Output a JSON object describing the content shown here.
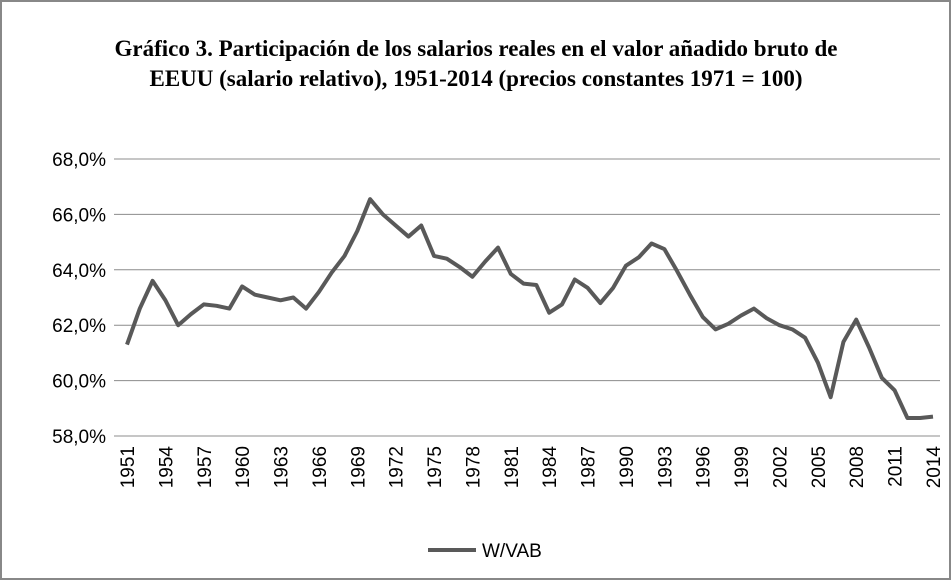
{
  "chart_data": {
    "type": "line",
    "title": "Gráfico 3. Participación de los salarios reales en el valor añadido bruto de EEUU (salario relativo), 1951-2014 (precios constantes 1971 = 100)",
    "categories": [
      "1951",
      null,
      null,
      "1954",
      null,
      null,
      "1957",
      null,
      null,
      "1960",
      null,
      null,
      "1963",
      null,
      null,
      "1966",
      null,
      null,
      "1969",
      null,
      null,
      "1972",
      null,
      null,
      "1975",
      null,
      null,
      "1978",
      null,
      null,
      "1981",
      null,
      null,
      "1984",
      null,
      null,
      "1987",
      null,
      null,
      "1990",
      null,
      null,
      "1993",
      null,
      null,
      "1996",
      null,
      null,
      "1999",
      null,
      null,
      "2002",
      null,
      null,
      "2005",
      null,
      null,
      "2008",
      null,
      null,
      "2011",
      null,
      null,
      "2014"
    ],
    "series": [
      {
        "name": "W/VAB",
        "color": "#595959",
        "values": [
          61.3,
          62.6,
          63.6,
          62.9,
          62.0,
          62.4,
          62.75,
          62.7,
          62.6,
          63.4,
          63.1,
          63.0,
          62.9,
          63.0,
          62.6,
          63.2,
          63.9,
          64.5,
          65.4,
          66.55,
          66.0,
          65.6,
          65.2,
          65.6,
          64.5,
          64.4,
          64.1,
          63.75,
          64.3,
          64.8,
          63.85,
          63.5,
          63.45,
          62.45,
          62.75,
          63.65,
          63.35,
          62.8,
          63.35,
          64.15,
          64.45,
          64.95,
          64.75,
          63.95,
          63.1,
          62.3,
          61.85,
          62.05,
          62.35,
          62.6,
          62.25,
          62.0,
          61.85,
          61.55,
          60.65,
          59.4,
          61.4,
          62.2,
          61.2,
          60.1,
          59.65,
          58.65,
          58.65,
          58.7
        ]
      }
    ],
    "ylim": [
      58,
      68
    ],
    "yticks": [
      {
        "value": 58,
        "label": "58,0%"
      },
      {
        "value": 60,
        "label": "60,0%"
      },
      {
        "value": 62,
        "label": "62,0%"
      },
      {
        "value": 64,
        "label": "64,0%"
      },
      {
        "value": 66,
        "label": "66,0%"
      },
      {
        "value": 68,
        "label": "68,0%"
      }
    ],
    "grid": true,
    "legend": "bottom"
  }
}
